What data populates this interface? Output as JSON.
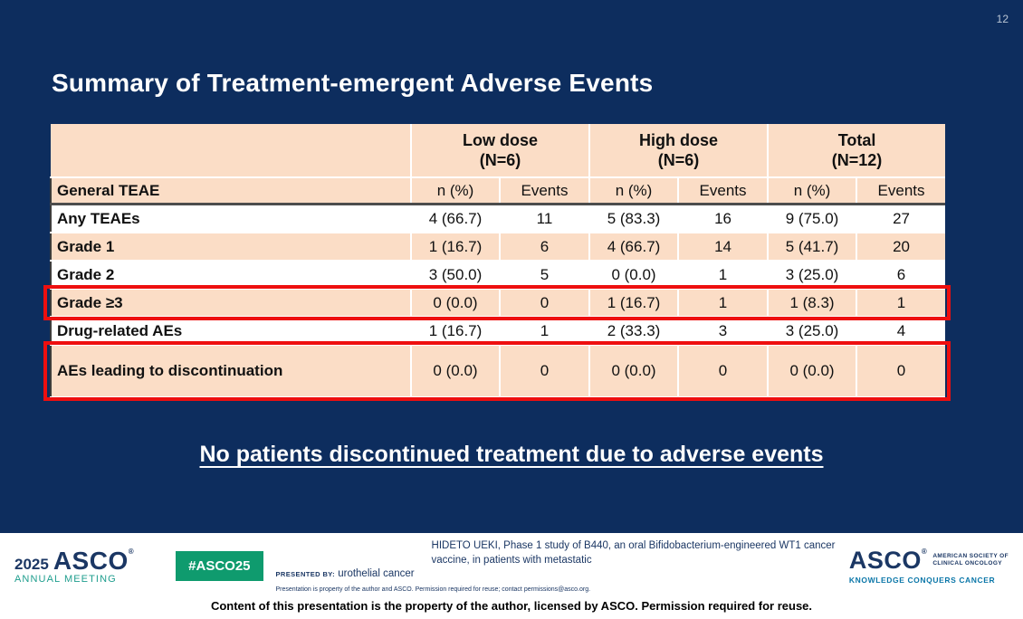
{
  "page_number": "12",
  "slide": {
    "title": "Summary of Treatment-emergent Adverse Events",
    "callout": "No patients discontinued treatment due to adverse events"
  },
  "table": {
    "group_headers": [
      {
        "label": "Low dose",
        "n": "(N=6)"
      },
      {
        "label": "High dose",
        "n": "(N=6)"
      },
      {
        "label": "Total",
        "n": "(N=12)"
      }
    ],
    "label_header": "General TEAE",
    "sub_headers": [
      "n (%)",
      "Events",
      "n (%)",
      "Events",
      "n (%)",
      "Events"
    ],
    "rows": [
      {
        "label": "Any TEAEs",
        "values": [
          "4 (66.7)",
          "11",
          "5 (83.3)",
          "16",
          "9 (75.0)",
          "27"
        ]
      },
      {
        "label": "Grade 1",
        "values": [
          "1 (16.7)",
          "6",
          "4 (66.7)",
          "14",
          "5 (41.7)",
          "20"
        ]
      },
      {
        "label": "Grade 2",
        "values": [
          "3 (50.0)",
          "5",
          "0 (0.0)",
          "1",
          "3 (25.0)",
          "6"
        ]
      },
      {
        "label": "Grade ≥3",
        "values": [
          "0 (0.0)",
          "0",
          "1 (16.7)",
          "1",
          "1 (8.3)",
          "1"
        ]
      },
      {
        "label": "Drug-related AEs",
        "values": [
          "1 (16.7)",
          "1",
          "2 (33.3)",
          "3",
          "3 (25.0)",
          "4"
        ]
      },
      {
        "label": "AEs leading to discontinuation",
        "values": [
          "0 (0.0)",
          "0",
          "0 (0.0)",
          "0",
          "0 (0.0)",
          "0"
        ]
      }
    ]
  },
  "footer": {
    "logo_year": "2025",
    "logo_asco": "ASCO",
    "logo_reg": "®",
    "logo_meeting": "ANNUAL MEETING",
    "hashtag": "#ASCO25",
    "presentation_title": "HIDETO UEKI, Phase 1 study of B440, an oral Bifidobacterium-engineered WT1 cancer vaccine, in patients with metastatic",
    "presented_by_label": "PRESENTED BY:",
    "presented_by_value": "urothelial cancer",
    "permission_note": "Presentation is property of the author and ASCO. Permission required for reuse; contact permissions@asco.org.",
    "asco_wordmark": "ASCO",
    "asco_reg": "®",
    "asco_society_line1": "AMERICAN SOCIETY OF",
    "asco_society_line2": "CLINICAL ONCOLOGY",
    "asco_tagline": "KNOWLEDGE CONQUERS CANCER"
  },
  "caption": "Content of this presentation is the property of the author, licensed by ASCO. Permission required for reuse.",
  "colors": {
    "navy_background": "#0d2d5e",
    "table_peach": "#fbddc6",
    "highlight_red": "#ee0f0f",
    "hashtag_green": "#0f9b6e",
    "meeting_teal": "#1f9e8e",
    "tagline_blue": "#0a76a8",
    "footer_navy": "#1b3764"
  }
}
